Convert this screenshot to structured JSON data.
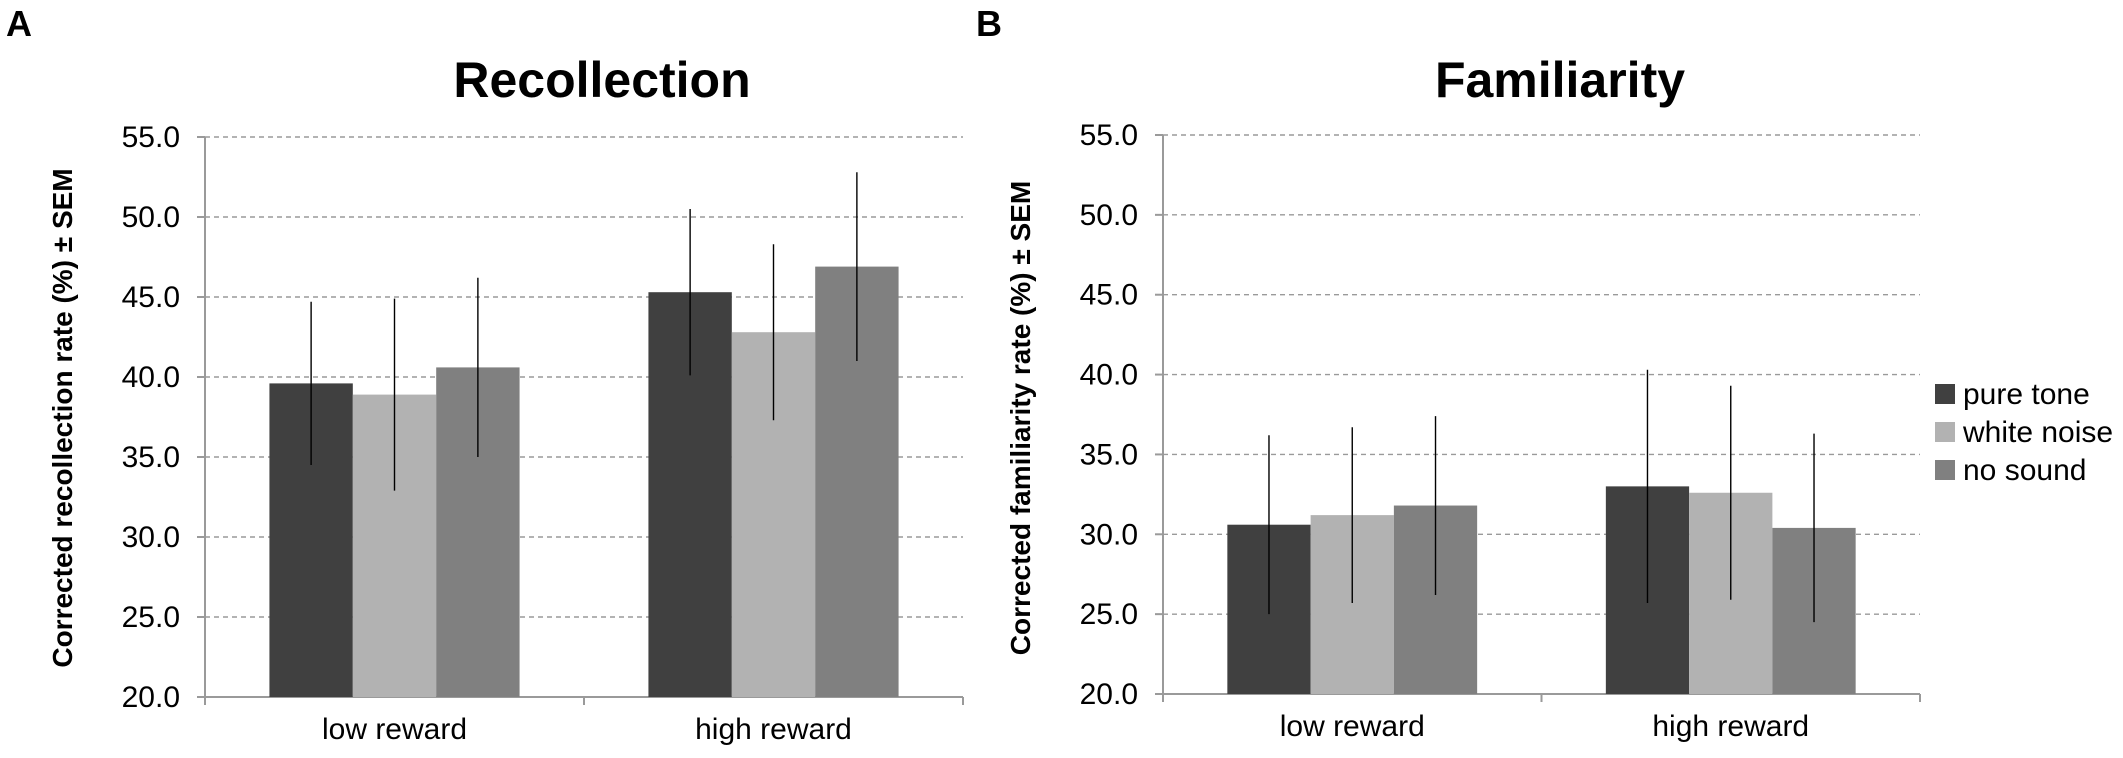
{
  "panels": [
    {
      "letter": "A"
    },
    {
      "letter": "B"
    }
  ],
  "legend": {
    "items": [
      {
        "name": "pure tone",
        "color": "#404040"
      },
      {
        "name": "white noise",
        "color": "#b2b2b2"
      },
      {
        "name": "no sound",
        "color": "#808080"
      }
    ]
  },
  "chart_data": [
    {
      "type": "bar",
      "title": "Recollection",
      "ylabel": "Corrected recollection rate (%) ± SEM",
      "xlabel": "",
      "ylim": [
        20,
        55
      ],
      "yticks": [
        "20.0",
        "25.0",
        "30.0",
        "35.0",
        "40.0",
        "45.0",
        "50.0",
        "55.0"
      ],
      "grid": true,
      "categories": [
        "low reward",
        "high reward"
      ],
      "series": [
        {
          "name": "pure tone",
          "values": [
            39.6,
            45.3
          ],
          "errors": [
            5.1,
            5.2
          ]
        },
        {
          "name": "white noise",
          "values": [
            38.9,
            42.8
          ],
          "errors": [
            6.0,
            5.5
          ]
        },
        {
          "name": "no sound",
          "values": [
            40.6,
            46.9
          ],
          "errors": [
            5.6,
            5.9
          ]
        }
      ]
    },
    {
      "type": "bar",
      "title": "Familiarity",
      "ylabel": "Corrected familiarity rate (%) ± SEM",
      "xlabel": "",
      "ylim": [
        20,
        55
      ],
      "yticks": [
        "20.0",
        "25.0",
        "30.0",
        "35.0",
        "40.0",
        "45.0",
        "50.0",
        "55.0"
      ],
      "grid": true,
      "categories": [
        "low reward",
        "high reward"
      ],
      "legend_position": "right",
      "series": [
        {
          "name": "pure tone",
          "values": [
            30.6,
            33.0
          ],
          "errors": [
            5.6,
            7.3
          ]
        },
        {
          "name": "white noise",
          "values": [
            31.2,
            32.6
          ],
          "errors": [
            5.5,
            6.7
          ]
        },
        {
          "name": "no sound",
          "values": [
            31.8,
            30.4
          ],
          "errors": [
            5.6,
            5.9
          ]
        }
      ]
    }
  ]
}
